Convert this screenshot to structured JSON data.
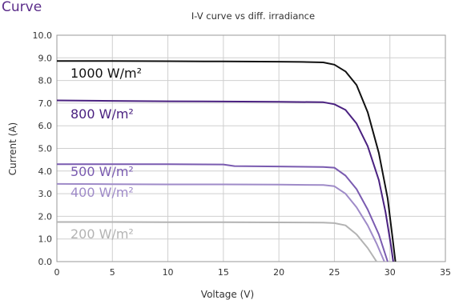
{
  "section_heading": "Curve",
  "chart_data": {
    "type": "line",
    "title": "I-V curve vs diff. irradiance",
    "xlabel": "Voltage (V)",
    "ylabel": "Current (A)",
    "xlim": [
      0,
      35
    ],
    "ylim": [
      0,
      10
    ],
    "x_ticks": [
      0,
      5,
      10,
      15,
      20,
      25,
      30,
      35
    ],
    "y_ticks": [
      "0.0",
      "1.0",
      "2.0",
      "3.0",
      "4.0",
      "5.0",
      "6.0",
      "7.0",
      "8.0",
      "9.0",
      "10.0"
    ],
    "grid": true,
    "series": [
      {
        "name": "1000 W/m²",
        "color": "#111111",
        "points": [
          [
            0,
            8.86
          ],
          [
            5,
            8.86
          ],
          [
            10,
            8.85
          ],
          [
            15,
            8.84
          ],
          [
            20,
            8.83
          ],
          [
            22,
            8.82
          ],
          [
            24,
            8.8
          ],
          [
            25,
            8.7
          ],
          [
            26,
            8.4
          ],
          [
            27,
            7.8
          ],
          [
            28,
            6.6
          ],
          [
            29,
            4.8
          ],
          [
            29.8,
            2.8
          ],
          [
            30.2,
            1.2
          ],
          [
            30.5,
            0
          ]
        ]
      },
      {
        "name": "800 W/m²",
        "color": "#4a2180",
        "points": [
          [
            0,
            7.12
          ],
          [
            5,
            7.1
          ],
          [
            10,
            7.08
          ],
          [
            15,
            7.07
          ],
          [
            20,
            7.06
          ],
          [
            24,
            7.04
          ],
          [
            25,
            6.95
          ],
          [
            26,
            6.7
          ],
          [
            27,
            6.1
          ],
          [
            28,
            5.1
          ],
          [
            29,
            3.6
          ],
          [
            29.6,
            2.2
          ],
          [
            30.1,
            0.7
          ],
          [
            30.3,
            0
          ]
        ]
      },
      {
        "name": "500 W/m²",
        "color": "#7a5bb0",
        "points": [
          [
            0,
            4.3
          ],
          [
            5,
            4.3
          ],
          [
            10,
            4.3
          ],
          [
            15,
            4.29
          ],
          [
            16,
            4.22
          ],
          [
            20,
            4.2
          ],
          [
            24,
            4.18
          ],
          [
            25,
            4.15
          ],
          [
            26,
            3.8
          ],
          [
            27,
            3.2
          ],
          [
            28,
            2.3
          ],
          [
            29,
            1.2
          ],
          [
            29.8,
            0
          ]
        ]
      },
      {
        "name": "400 W/m²",
        "color": "#9f8bc8",
        "points": [
          [
            0,
            3.43
          ],
          [
            5,
            3.42
          ],
          [
            10,
            3.41
          ],
          [
            15,
            3.41
          ],
          [
            20,
            3.4
          ],
          [
            24,
            3.38
          ],
          [
            25,
            3.33
          ],
          [
            26,
            3.0
          ],
          [
            27,
            2.4
          ],
          [
            28,
            1.6
          ],
          [
            28.8,
            0.8
          ],
          [
            29.5,
            0
          ]
        ]
      },
      {
        "name": "200 W/m²",
        "color": "#b3b3b3",
        "points": [
          [
            0,
            1.75
          ],
          [
            5,
            1.75
          ],
          [
            10,
            1.74
          ],
          [
            15,
            1.74
          ],
          [
            20,
            1.73
          ],
          [
            24,
            1.72
          ],
          [
            25,
            1.7
          ],
          [
            26,
            1.6
          ],
          [
            27,
            1.2
          ],
          [
            28,
            0.6
          ],
          [
            28.8,
            0
          ]
        ]
      }
    ]
  }
}
